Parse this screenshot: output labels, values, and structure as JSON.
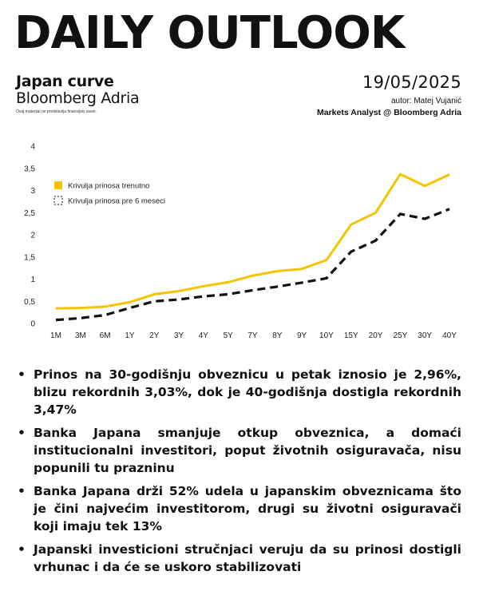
{
  "header": {
    "title": "DAILY OUTLOOK",
    "subtitle": "Japan curve",
    "source": "Bloomberg Adria",
    "disclaimer": "Ovaj materijal ne predstavlja finansijski savet.",
    "date": "19/05/2025",
    "author": "autor: Matej Vujanić",
    "role": "Markets Analyst @ Bloomberg Adria"
  },
  "colors": {
    "current": "#F5C400",
    "previous": "#111111"
  },
  "chart_data": {
    "type": "line",
    "categories": [
      "1M",
      "3M",
      "6M",
      "1Y",
      "2Y",
      "3Y",
      "4Y",
      "5Y",
      "7Y",
      "8Y",
      "9Y",
      "10Y",
      "15Y",
      "20Y",
      "25Y",
      "30Y",
      "40Y"
    ],
    "series": [
      {
        "name": "Krivulja prinosa trenutno",
        "style": "solid",
        "values": [
          0.34,
          0.35,
          0.38,
          0.48,
          0.66,
          0.73,
          0.84,
          0.93,
          1.08,
          1.18,
          1.23,
          1.43,
          2.23,
          2.5,
          3.37,
          3.1,
          3.36
        ]
      },
      {
        "name": "Krivulja prinosa pre 6 meseci",
        "style": "dashed",
        "values": [
          0.08,
          0.12,
          0.19,
          0.35,
          0.5,
          0.54,
          0.61,
          0.66,
          0.75,
          0.83,
          0.92,
          1.02,
          1.62,
          1.87,
          2.47,
          2.36,
          2.58
        ]
      }
    ],
    "yticks": [
      "0",
      "0,5",
      "1",
      "1,5",
      "2",
      "2,5",
      "3",
      "3,5",
      "4"
    ],
    "ylim": [
      0,
      4
    ],
    "grid": false,
    "legend_position": "top-left"
  },
  "bullets": [
    "Prinos na 30-godišnju obveznicu u petak iznosio je 2,96%, blizu rekordnih 3,03%, dok je 40-godišnja dostigla rekordnih 3,47%",
    "Banka Japana smanjuje otkup obveznica, a domaći institucionalni investitori, poput životnih osiguravača, nisu popunili tu prazninu",
    "Banka Japana drži 52% udela u japanskim obveznicama što je čini najvećim investitorom, drugi su životni osiguravači koji imaju tek 13%",
    "Japanski investicioni stručnjaci veruju da su prinosi dostigli vrhunac i da će se uskoro stabilizovati"
  ]
}
